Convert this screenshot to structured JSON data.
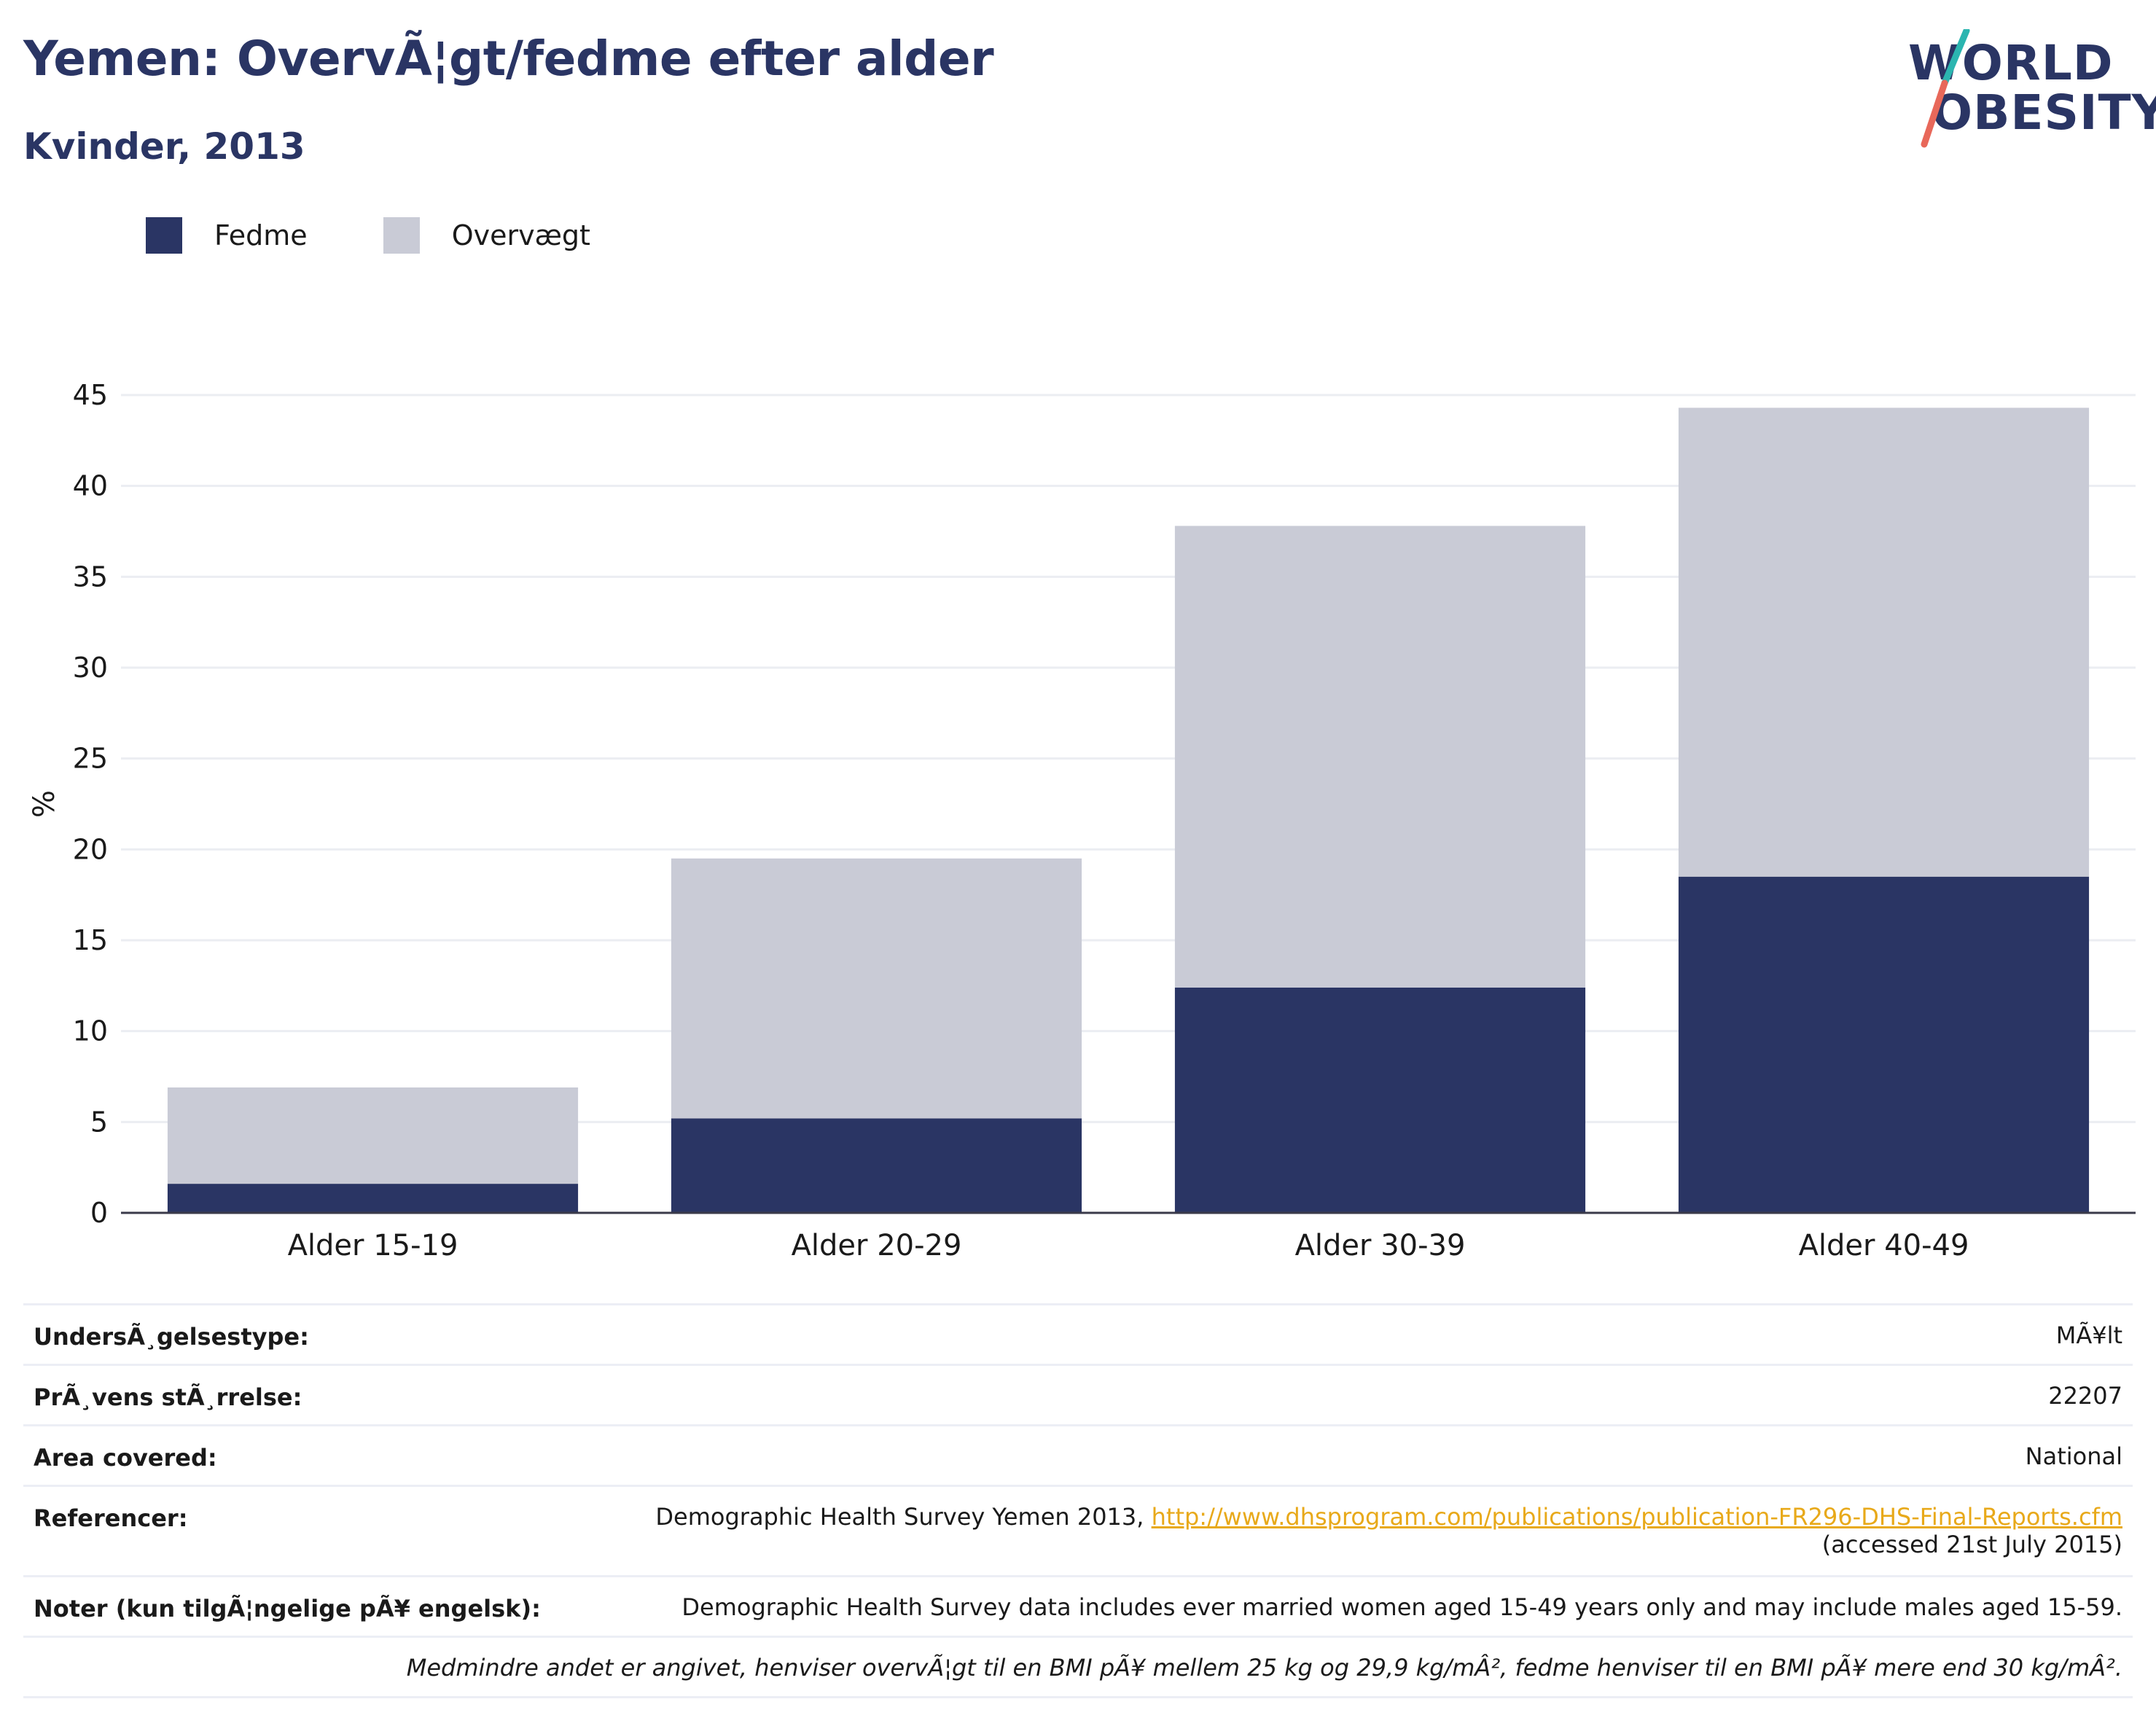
{
  "header": {
    "title": "Yemen: OvervÃ¦gt/fedme efter alder",
    "subtitle": "Kvinder, 2013"
  },
  "logo": {
    "line1": "WORLD",
    "line2": "OBESITY",
    "accent_teal": "#2bb5b0",
    "accent_coral": "#e8685a"
  },
  "legend": [
    {
      "label": "Fedme",
      "color": "#2a3564"
    },
    {
      "label": "Overvægt",
      "color": "#c9cbd6"
    }
  ],
  "chart_data": {
    "type": "bar",
    "stacked": true,
    "categories": [
      "Alder 15-19",
      "Alder 20-29",
      "Alder 30-39",
      "Alder 40-49"
    ],
    "series": [
      {
        "name": "Fedme",
        "values": [
          1.6,
          5.2,
          12.4,
          18.5
        ],
        "color": "#2a3564"
      },
      {
        "name": "Overvægt",
        "values": [
          5.3,
          14.3,
          25.4,
          25.8
        ],
        "color": "#c9cbd6"
      }
    ],
    "ylabel": "%",
    "ylim": [
      0,
      45
    ],
    "yticks": [
      0,
      5,
      10,
      15,
      20,
      25,
      30,
      35,
      40,
      45
    ],
    "grid": true,
    "legend_position": "top-left"
  },
  "info": {
    "survey_type_label": "UndersÃ¸gelsestype:",
    "survey_type_value": "MÃ¥lt",
    "sample_size_label": "PrÃ¸vens stÃ¸rrelse:",
    "sample_size_value": "22207",
    "area_label": "Area covered:",
    "area_value": "National",
    "references_label": "Referencer:",
    "references_text": "Demographic Health Survey Yemen 2013, ",
    "references_link": "http://www.dhsprogram.com/publications/publication-FR296-DHS-Final-Reports.cfm",
    "references_accessed": "(accessed 21st July 2015)",
    "notes_label": "Noter (kun tilgÃ¦ngelige pÃ¥ engelsk):",
    "notes_value": "Demographic Health Survey data includes ever married women aged 15-49 years only and may include males aged 15-59.",
    "footnote": "Medmindre andet er angivet, henviser overvÃ¦gt til en BMI pÃ¥ mellem 25 kg og 29,9 kg/mÂ², fedme henviser til en BMI pÃ¥ mere end 30 kg/mÂ²."
  }
}
